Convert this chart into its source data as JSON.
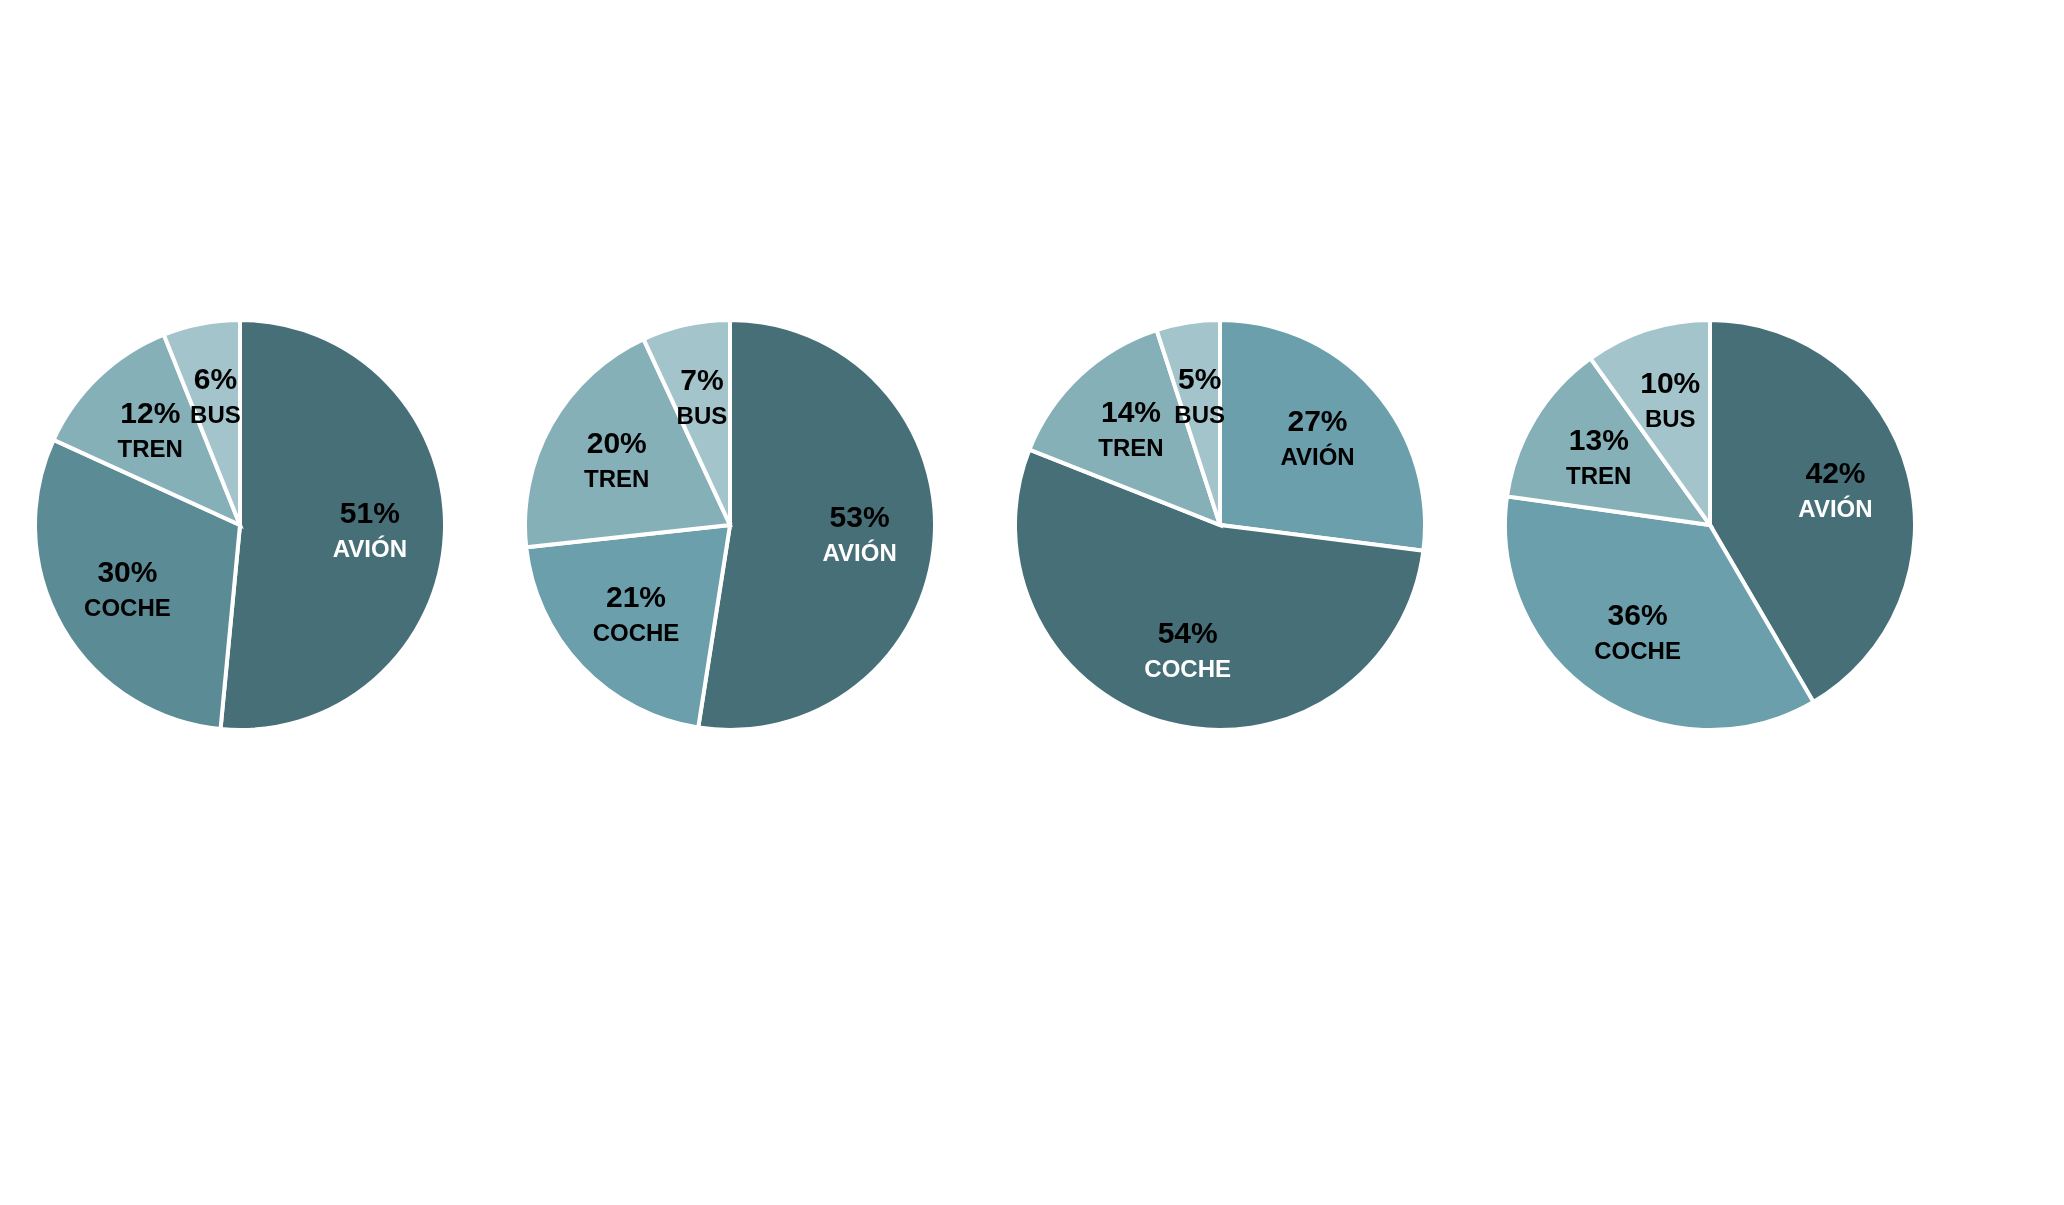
{
  "chart_data": [
    {
      "type": "pie",
      "categories": [
        "AVIÓN",
        "COCHE",
        "TREN",
        "BUS"
      ],
      "values": [
        51,
        30,
        12,
        6
      ],
      "value_labels": [
        "51%",
        "30%",
        "12%",
        "6%"
      ],
      "colors": [
        "#466f78",
        "#5b8c96",
        "#86b0b8",
        "#a3c4cb"
      ]
    },
    {
      "type": "pie",
      "categories": [
        "AVIÓN",
        "COCHE",
        "TREN",
        "BUS"
      ],
      "values": [
        53,
        21,
        20,
        7
      ],
      "value_labels": [
        "53%",
        "21%",
        "20%",
        "7%"
      ],
      "colors": [
        "#466f78",
        "#6a9fab",
        "#86b0b8",
        "#a3c4cb"
      ]
    },
    {
      "type": "pie",
      "categories": [
        "AVIÓN",
        "COCHE",
        "TREN",
        "BUS"
      ],
      "values": [
        27,
        54,
        14,
        5
      ],
      "value_labels": [
        "27%",
        "54%",
        "14%",
        "5%"
      ],
      "colors": [
        "#6a9fab",
        "#466f78",
        "#86b0b8",
        "#a3c4cb"
      ]
    },
    {
      "type": "pie",
      "categories": [
        "AVIÓN",
        "COCHE",
        "TREN",
        "BUS"
      ],
      "values": [
        42,
        36,
        13,
        10
      ],
      "value_labels": [
        "42%",
        "36%",
        "13%",
        "10%"
      ],
      "colors": [
        "#466f78",
        "#6a9fab",
        "#86b0b8",
        "#a3c4cb"
      ]
    }
  ]
}
